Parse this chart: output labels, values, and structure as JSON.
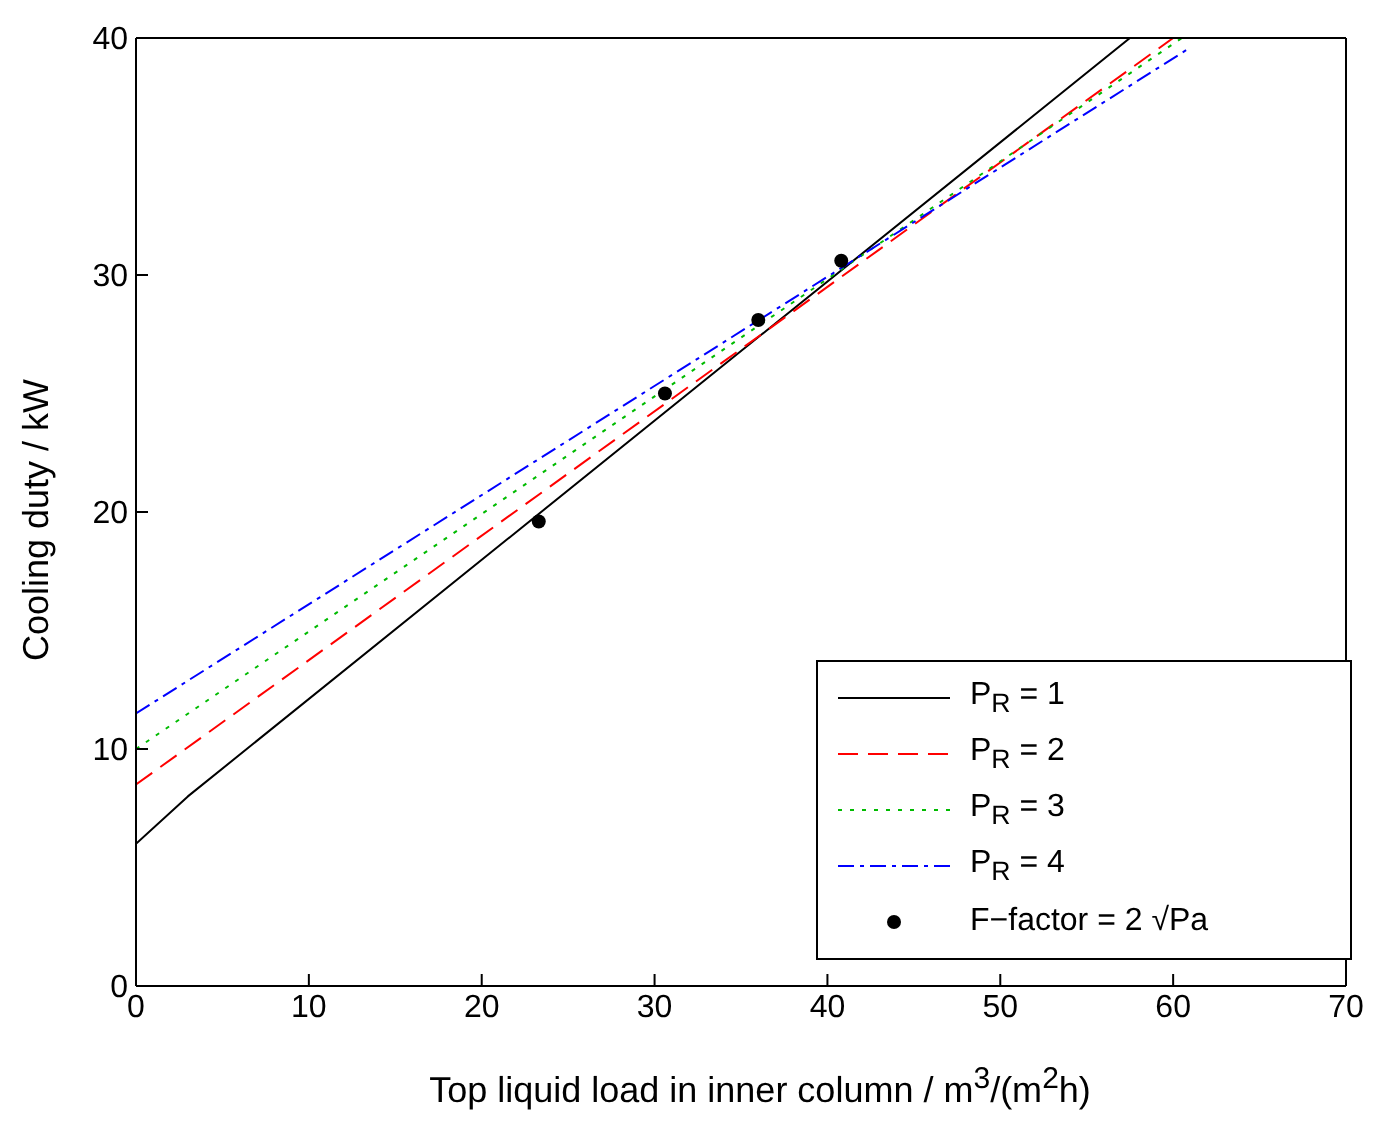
{
  "chart_data": {
    "type": "line",
    "xlabel": "Top liquid load in inner column   /  m$^{3}$/(m$^{2}$h)",
    "ylabel": "Cooling duty  /  kW",
    "xlim": [
      0,
      70
    ],
    "xticks": [
      0,
      10,
      20,
      30,
      40,
      50,
      60,
      70
    ],
    "ylim": [
      0,
      40
    ],
    "yticks": [
      0,
      10,
      20,
      30,
      40
    ],
    "grid": false,
    "legend": "bottom right",
    "marker": "none",
    "series": [
      {
        "name": "P$_{R}$ = 1",
        "color": "#000000",
        "line_style": "solid",
        "x": [
          0,
          3,
          57.5
        ],
        "values": [
          6,
          8,
          40
        ]
      },
      {
        "name": "P$_{R}$ = 2",
        "color": "#ff0000",
        "line_style": "dashed",
        "x": [
          0,
          60
        ],
        "values": [
          8.5,
          40
        ]
      },
      {
        "name": "P$_{R}$ = 3",
        "color": "#00bb00",
        "line_style": "dotted",
        "x": [
          0,
          60.5
        ],
        "values": [
          10,
          40
        ]
      },
      {
        "name": "P$_{R}$ = 4",
        "color": "#0000ff",
        "line_style": "dashdot",
        "x": [
          0,
          61
        ],
        "values": [
          11.5,
          39.6
        ]
      },
      {
        "name": "F−factor = 2 √Pa",
        "type": "scatter",
        "marker": "circle",
        "color": "#000000",
        "x": [
          23.3,
          30.6,
          36,
          40.8
        ],
        "values": [
          19.6,
          25,
          28.1,
          30.6
        ]
      }
    ]
  }
}
